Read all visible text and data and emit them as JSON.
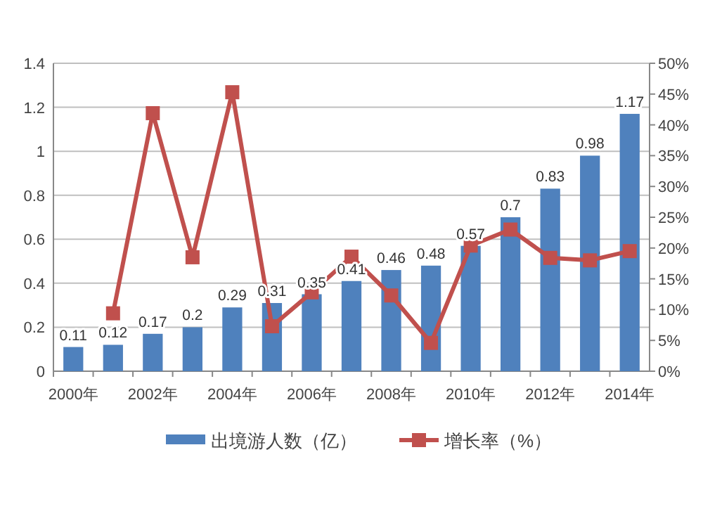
{
  "chart_data": {
    "type": "bar",
    "categories": [
      "2000年",
      null,
      "2002年",
      null,
      "2004年",
      null,
      "2006年",
      null,
      "2008年",
      null,
      "2010年",
      null,
      "2012年",
      null,
      "2014年"
    ],
    "series": [
      {
        "name": "出境游人数（亿）",
        "color": "#4f81bd",
        "values": [
          0.11,
          0.12,
          0.17,
          0.2,
          0.29,
          0.31,
          0.35,
          0.41,
          0.46,
          0.48,
          0.57,
          0.7,
          0.83,
          0.98,
          1.17
        ],
        "value_labels": [
          "0.11",
          "0.12",
          "0.17",
          "0.2",
          "0.29",
          "0.31",
          "0.35",
          "0.41",
          "0.46",
          "0.48",
          "0.57",
          "0.7",
          "0.83",
          "0.98",
          "1.17"
        ]
      },
      {
        "name": "增长率（%）",
        "type": "line",
        "axis": "y2",
        "marker": "square",
        "color": "#c0504d",
        "values": [
          null,
          9.4,
          41.9,
          18.5,
          45.3,
          7.3,
          12.8,
          18.6,
          12.3,
          4.6,
          20.4,
          23,
          18.4,
          18,
          19.5
        ]
      }
    ],
    "ylim": [
      0,
      1.4
    ],
    "yticks": [
      0,
      0.2,
      0.4,
      0.6,
      0.8,
      1,
      1.2,
      1.4
    ],
    "y2lim": [
      0,
      50
    ],
    "y2ticks": [
      {
        "value": 0,
        "label": "0%"
      },
      {
        "value": 5,
        "label": "5%"
      },
      {
        "value": 10,
        "label": "10%"
      },
      {
        "value": 15,
        "label": "15%"
      },
      {
        "value": 20,
        "label": "20%"
      },
      {
        "value": 25,
        "label": "25%"
      },
      {
        "value": 30,
        "label": "30%"
      },
      {
        "value": 35,
        "label": "35%"
      },
      {
        "value": 40,
        "label": "40%"
      },
      {
        "value": 45,
        "label": "45%"
      },
      {
        "value": 50,
        "label": "50%"
      }
    ],
    "grid": "y",
    "legend": "bottom"
  }
}
